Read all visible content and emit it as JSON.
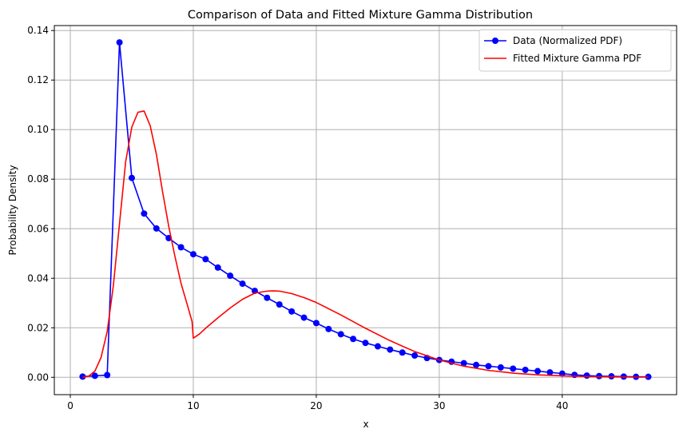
{
  "chart_data": {
    "type": "line",
    "title": "Comparison of Data and Fitted Mixture Gamma Distribution",
    "xlabel": "x",
    "ylabel": "Probability Density",
    "xlim": [
      -1.3,
      49.3
    ],
    "ylim": [
      -0.007,
      0.142
    ],
    "x_ticks": [
      0,
      10,
      20,
      30,
      40
    ],
    "y_ticks": [
      0.0,
      0.02,
      0.04,
      0.06,
      0.08,
      0.1,
      0.12,
      0.14
    ],
    "x_tick_labels": [
      "0",
      "10",
      "20",
      "30",
      "40"
    ],
    "y_tick_labels": [
      "0.00",
      "0.02",
      "0.04",
      "0.06",
      "0.08",
      "0.10",
      "0.12",
      "0.14"
    ],
    "grid": true,
    "legend_position": "top-right",
    "series": [
      {
        "name": "Data (Normalized PDF)",
        "color": "#0000ff",
        "marker": "circle",
        "x": [
          1,
          2,
          3,
          4,
          5,
          6,
          7,
          8,
          9,
          10,
          11,
          12,
          13,
          14,
          15,
          16,
          17,
          18,
          19,
          20,
          21,
          22,
          23,
          24,
          25,
          26,
          27,
          28,
          29,
          30,
          31,
          32,
          33,
          34,
          35,
          36,
          37,
          38,
          39,
          40,
          41,
          42,
          43,
          44,
          45,
          46,
          47
        ],
        "y": [
          0.0003,
          0.0006,
          0.0009,
          0.1352,
          0.0805,
          0.0661,
          0.0601,
          0.0562,
          0.0525,
          0.0497,
          0.0477,
          0.0443,
          0.041,
          0.0378,
          0.0349,
          0.0321,
          0.0294,
          0.0266,
          0.0241,
          0.0219,
          0.0195,
          0.0174,
          0.0155,
          0.0139,
          0.0125,
          0.0112,
          0.01,
          0.0088,
          0.0078,
          0.007,
          0.0063,
          0.0057,
          0.005,
          0.0045,
          0.004,
          0.0035,
          0.003,
          0.0025,
          0.002,
          0.0015,
          0.001,
          0.0007,
          0.0005,
          0.0004,
          0.0003,
          0.0002,
          0.0002
        ]
      },
      {
        "name": "Fitted Mixture Gamma PDF",
        "color": "#ff0000",
        "marker": "none",
        "x": [
          1,
          1.5,
          2,
          2.5,
          3,
          3.5,
          4,
          4.5,
          5,
          5.5,
          6,
          6.5,
          7,
          7.5,
          8,
          8.5,
          9,
          9.5,
          9.9,
          10,
          10.5,
          11,
          12,
          13,
          14,
          15,
          16,
          16.5,
          17,
          18,
          19,
          20,
          22,
          24,
          26,
          28,
          30,
          32,
          34,
          36,
          38,
          40,
          42,
          44,
          46,
          47
        ],
        "y": [
          0.0,
          0.0005,
          0.0025,
          0.008,
          0.0185,
          0.037,
          0.062,
          0.087,
          0.101,
          0.107,
          0.1075,
          0.1015,
          0.09,
          0.075,
          0.061,
          0.049,
          0.038,
          0.0295,
          0.0225,
          0.0158,
          0.0175,
          0.0198,
          0.024,
          0.028,
          0.0315,
          0.034,
          0.0348,
          0.0349,
          0.0348,
          0.0338,
          0.0322,
          0.0302,
          0.0252,
          0.0198,
          0.0148,
          0.0104,
          0.007,
          0.0045,
          0.0028,
          0.0017,
          0.001,
          0.0006,
          0.0003,
          0.0002,
          0.0001,
          0.0001
        ]
      }
    ]
  }
}
